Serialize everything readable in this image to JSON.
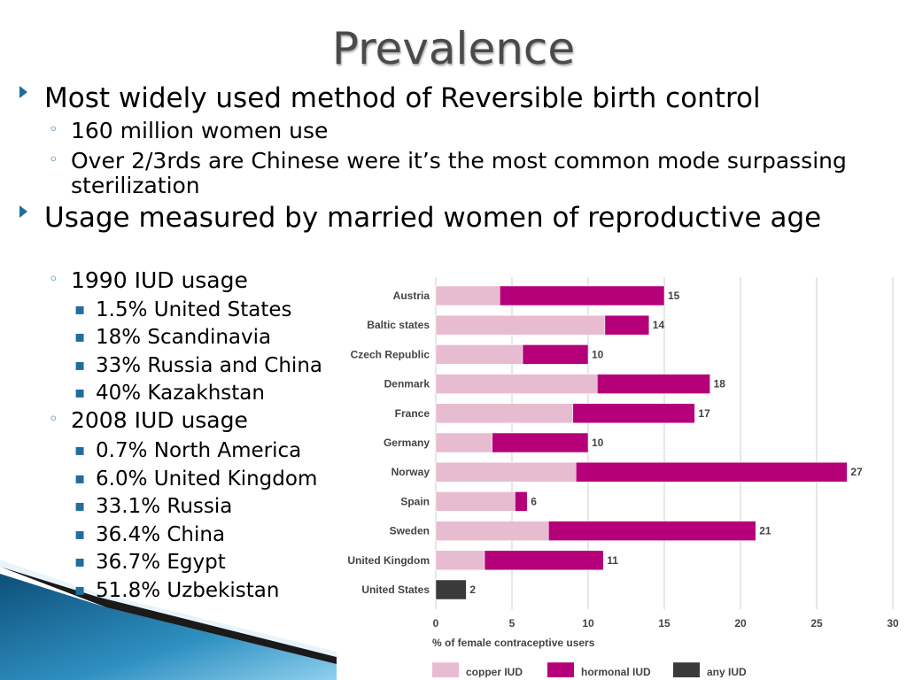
{
  "slide": {
    "title": "Prevalence",
    "bullets": [
      {
        "text": "Most widely used method of Reversible birth control"
      },
      {
        "text": "160 million women use"
      },
      {
        "text": "Over 2/3rds are Chinese were it’s the most common mode surpassing sterilization"
      },
      {
        "text": "Usage measured by married women of reproductive age"
      },
      {
        "text": "1990 IUD usage"
      },
      {
        "text": "1.5% United States"
      },
      {
        "text": "18% Scandinavia"
      },
      {
        "text": "33% Russia and China"
      },
      {
        "text": "40% Kazakhstan"
      },
      {
        "text": "2008 IUD usage"
      },
      {
        "text": "0.7% North America"
      },
      {
        "text": "6.0% United Kingdom"
      },
      {
        "text": "33.1% Russia"
      },
      {
        "text": "36.4% China"
      },
      {
        "text": "36.7% Egypt"
      },
      {
        "text": "51.8% Uzbekistan"
      }
    ]
  },
  "colors": {
    "accent": "#1f6e9c",
    "copper": "#e8bcd0",
    "hormonal": "#b5007a",
    "any": "#3a3a3a"
  },
  "chart_data": {
    "type": "bar",
    "orientation": "horizontal",
    "stacked": true,
    "categories": [
      "Austria",
      "Baltic states",
      "Czech Republic",
      "Denmark",
      "France",
      "Germany",
      "Norway",
      "Spain",
      "Sweden",
      "United Kingdom",
      "United States"
    ],
    "series": [
      {
        "name": "copper IUD",
        "color": "#e8bcd0",
        "values": [
          4.2,
          11.1,
          5.7,
          10.6,
          9.0,
          3.7,
          9.2,
          5.2,
          7.4,
          3.2,
          0
        ]
      },
      {
        "name": "hormonal IUD",
        "color": "#b5007a",
        "values": [
          10.8,
          2.9,
          4.3,
          7.4,
          8.0,
          6.3,
          17.8,
          0.8,
          13.6,
          7.8,
          0
        ]
      },
      {
        "name": "any IUD",
        "color": "#3a3a3a",
        "values": [
          0,
          0,
          0,
          0,
          0,
          0,
          0,
          0,
          0,
          0,
          2
        ]
      }
    ],
    "totals": [
      "15",
      "14",
      "10",
      "18",
      "17",
      "10",
      "27",
      "6",
      "21",
      "11",
      "2"
    ],
    "xlabel": "% of female contraceptive users",
    "xlim": [
      0,
      30
    ],
    "xticks": [
      "0",
      "5",
      "10",
      "15",
      "20",
      "25",
      "30"
    ],
    "grid": "vertical",
    "legend_position": "bottom"
  }
}
